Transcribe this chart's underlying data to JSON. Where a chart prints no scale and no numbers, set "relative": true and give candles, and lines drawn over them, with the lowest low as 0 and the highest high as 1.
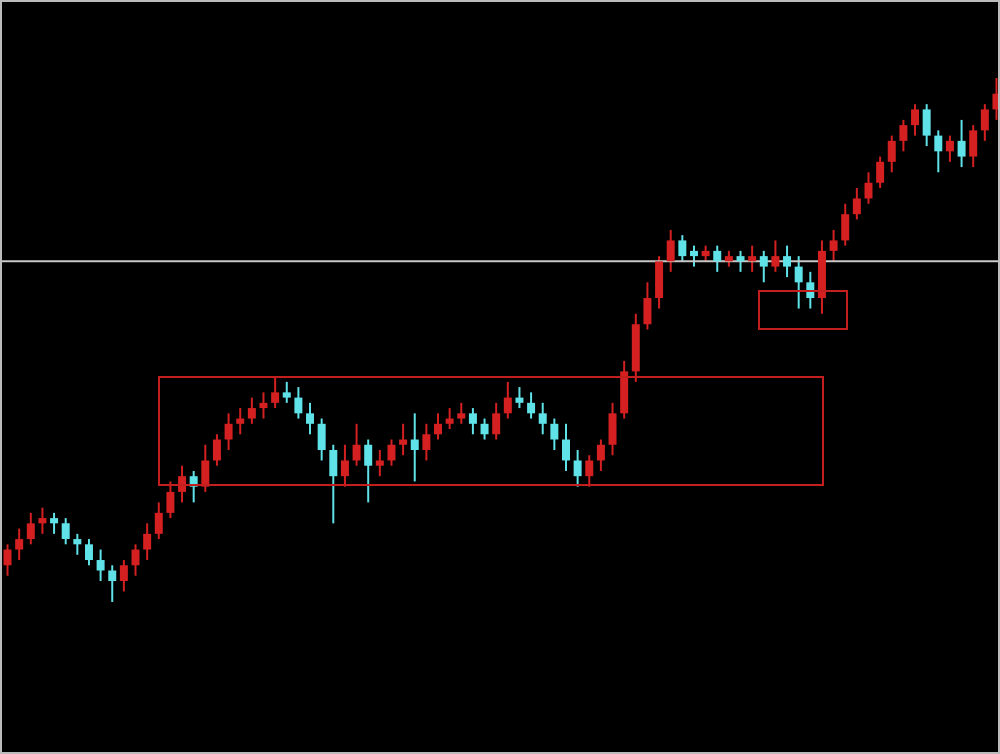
{
  "chart_data": {
    "type": "candlestick",
    "relative": true,
    "categories": [
      null,
      null,
      null,
      null,
      null,
      null,
      null,
      null,
      null,
      null,
      null,
      null,
      null,
      null,
      null,
      null,
      null,
      null,
      null,
      null,
      null,
      null,
      null,
      null,
      null,
      null,
      null,
      null,
      null,
      null,
      null,
      null,
      null,
      null,
      null,
      null,
      null,
      null,
      null,
      null,
      null,
      null,
      null,
      null,
      null,
      null,
      null,
      null,
      null,
      null,
      null,
      null,
      null,
      null,
      null,
      null,
      null,
      null,
      null,
      null,
      null,
      null,
      null,
      null,
      null,
      null,
      null,
      null,
      null,
      null,
      null,
      null,
      null,
      null,
      null,
      null,
      null,
      null,
      null,
      null,
      null,
      null,
      null,
      null,
      null,
      null
    ],
    "ohlc": [
      [
        0.07,
        0.11,
        0.05,
        0.1
      ],
      [
        0.1,
        0.14,
        0.08,
        0.12
      ],
      [
        0.12,
        0.17,
        0.11,
        0.15
      ],
      [
        0.15,
        0.18,
        0.13,
        0.16
      ],
      [
        0.16,
        0.17,
        0.13,
        0.15
      ],
      [
        0.15,
        0.16,
        0.11,
        0.12
      ],
      [
        0.12,
        0.13,
        0.09,
        0.11
      ],
      [
        0.11,
        0.12,
        0.07,
        0.08
      ],
      [
        0.08,
        0.1,
        0.04,
        0.06
      ],
      [
        0.06,
        0.07,
        0,
        0.04
      ],
      [
        0.04,
        0.08,
        0.02,
        0.07
      ],
      [
        0.07,
        0.11,
        0.05,
        0.1
      ],
      [
        0.1,
        0.15,
        0.08,
        0.13
      ],
      [
        0.13,
        0.19,
        0.12,
        0.17
      ],
      [
        0.17,
        0.23,
        0.16,
        0.21
      ],
      [
        0.21,
        0.26,
        0.19,
        0.24
      ],
      [
        0.24,
        0.25,
        0.19,
        0.22
      ],
      [
        0.22,
        0.3,
        0.21,
        0.27
      ],
      [
        0.27,
        0.32,
        0.26,
        0.31
      ],
      [
        0.31,
        0.36,
        0.29,
        0.34
      ],
      [
        0.34,
        0.37,
        0.32,
        0.35
      ],
      [
        0.35,
        0.39,
        0.34,
        0.37
      ],
      [
        0.37,
        0.4,
        0.35,
        0.38
      ],
      [
        0.38,
        0.43,
        0.37,
        0.4
      ],
      [
        0.4,
        0.42,
        0.38,
        0.39
      ],
      [
        0.39,
        0.41,
        0.35,
        0.36
      ],
      [
        0.36,
        0.38,
        0.32,
        0.34
      ],
      [
        0.34,
        0.35,
        0.27,
        0.29
      ],
      [
        0.29,
        0.3,
        0.15,
        0.24
      ],
      [
        0.24,
        0.3,
        0.22,
        0.27
      ],
      [
        0.27,
        0.34,
        0.26,
        0.3
      ],
      [
        0.3,
        0.31,
        0.19,
        0.26
      ],
      [
        0.26,
        0.29,
        0.24,
        0.27
      ],
      [
        0.27,
        0.31,
        0.26,
        0.3
      ],
      [
        0.3,
        0.34,
        0.28,
        0.31
      ],
      [
        0.31,
        0.36,
        0.23,
        0.29
      ],
      [
        0.29,
        0.34,
        0.27,
        0.32
      ],
      [
        0.32,
        0.36,
        0.31,
        0.34
      ],
      [
        0.34,
        0.37,
        0.33,
        0.35
      ],
      [
        0.35,
        0.38,
        0.34,
        0.36
      ],
      [
        0.36,
        0.37,
        0.32,
        0.34
      ],
      [
        0.34,
        0.35,
        0.31,
        0.32
      ],
      [
        0.32,
        0.38,
        0.31,
        0.36
      ],
      [
        0.36,
        0.42,
        0.35,
        0.39
      ],
      [
        0.39,
        0.41,
        0.37,
        0.38
      ],
      [
        0.38,
        0.4,
        0.35,
        0.36
      ],
      [
        0.36,
        0.38,
        0.32,
        0.34
      ],
      [
        0.34,
        0.35,
        0.29,
        0.31
      ],
      [
        0.31,
        0.34,
        0.25,
        0.27
      ],
      [
        0.27,
        0.29,
        0.22,
        0.24
      ],
      [
        0.24,
        0.28,
        0.22,
        0.27
      ],
      [
        0.27,
        0.31,
        0.25,
        0.3
      ],
      [
        0.3,
        0.38,
        0.28,
        0.36
      ],
      [
        0.36,
        0.46,
        0.35,
        0.44
      ],
      [
        0.44,
        0.55,
        0.42,
        0.53
      ],
      [
        0.53,
        0.61,
        0.52,
        0.58
      ],
      [
        0.58,
        0.66,
        0.56,
        0.65
      ],
      [
        0.65,
        0.71,
        0.63,
        0.69
      ],
      [
        0.69,
        0.7,
        0.65,
        0.66
      ],
      [
        0.67,
        0.68,
        0.64,
        0.66
      ],
      [
        0.66,
        0.68,
        0.65,
        0.67
      ],
      [
        0.67,
        0.68,
        0.63,
        0.65
      ],
      [
        0.65,
        0.67,
        0.64,
        0.66
      ],
      [
        0.66,
        0.67,
        0.63,
        0.65
      ],
      [
        0.65,
        0.68,
        0.63,
        0.66
      ],
      [
        0.66,
        0.67,
        0.61,
        0.64
      ],
      [
        0.64,
        0.69,
        0.63,
        0.66
      ],
      [
        0.66,
        0.68,
        0.62,
        0.64
      ],
      [
        0.64,
        0.66,
        0.56,
        0.61
      ],
      [
        0.61,
        0.63,
        0.56,
        0.58
      ],
      [
        0.58,
        0.69,
        0.55,
        0.67
      ],
      [
        0.67,
        0.71,
        0.65,
        0.69
      ],
      [
        0.69,
        0.76,
        0.68,
        0.74
      ],
      [
        0.74,
        0.79,
        0.73,
        0.77
      ],
      [
        0.77,
        0.82,
        0.76,
        0.8
      ],
      [
        0.8,
        0.85,
        0.79,
        0.84
      ],
      [
        0.84,
        0.89,
        0.82,
        0.88
      ],
      [
        0.88,
        0.92,
        0.86,
        0.91
      ],
      [
        0.91,
        0.95,
        0.89,
        0.94
      ],
      [
        0.94,
        0.95,
        0.87,
        0.89
      ],
      [
        0.89,
        0.9,
        0.82,
        0.86
      ],
      [
        0.86,
        0.89,
        0.84,
        0.88
      ],
      [
        0.88,
        0.92,
        0.83,
        0.85
      ],
      [
        0.85,
        0.91,
        0.83,
        0.9
      ],
      [
        0.9,
        0.95,
        0.88,
        0.94
      ],
      [
        0.94,
        1,
        0.92,
        0.97
      ]
    ],
    "colors": [
      "#d42020",
      "#d42020",
      "#d42020",
      "#d42020",
      "#5fe3e8",
      "#5fe3e8",
      "#5fe3e8",
      "#5fe3e8",
      "#5fe3e8",
      "#5fe3e8",
      "#d42020",
      "#d42020",
      "#d42020",
      "#d42020",
      "#d42020",
      "#d42020",
      "#5fe3e8",
      "#d42020",
      "#d42020",
      "#d42020",
      "#d42020",
      "#d42020",
      "#d42020",
      "#d42020",
      "#5fe3e8",
      "#5fe3e8",
      "#5fe3e8",
      "#5fe3e8",
      "#5fe3e8",
      "#d42020",
      "#d42020",
      "#5fe3e8",
      "#d42020",
      "#d42020",
      "#d42020",
      "#5fe3e8",
      "#d42020",
      "#d42020",
      "#d42020",
      "#d42020",
      "#5fe3e8",
      "#5fe3e8",
      "#d42020",
      "#d42020",
      "#5fe3e8",
      "#5fe3e8",
      "#5fe3e8",
      "#5fe3e8",
      "#5fe3e8",
      "#5fe3e8",
      "#d42020",
      "#d42020",
      "#d42020",
      "#d42020",
      "#d42020",
      "#d42020",
      "#d42020",
      "#d42020",
      "#5fe3e8",
      "#5fe3e8",
      "#d42020",
      "#5fe3e8",
      "#d42020",
      "#5fe3e8",
      "#d42020",
      "#5fe3e8",
      "#d42020",
      "#5fe3e8",
      "#5fe3e8",
      "#5fe3e8",
      "#d42020",
      "#d42020",
      "#d42020",
      "#d42020",
      "#d42020",
      "#d42020",
      "#d42020",
      "#d42020",
      "#d42020",
      "#5fe3e8",
      "#5fe3e8",
      "#d42020",
      "#5fe3e8",
      "#d42020",
      "#d42020",
      "#d42020"
    ],
    "ref_lines": [
      {
        "axis": "y",
        "value": 0.65,
        "color": "#c8c8c8"
      }
    ]
  }
}
